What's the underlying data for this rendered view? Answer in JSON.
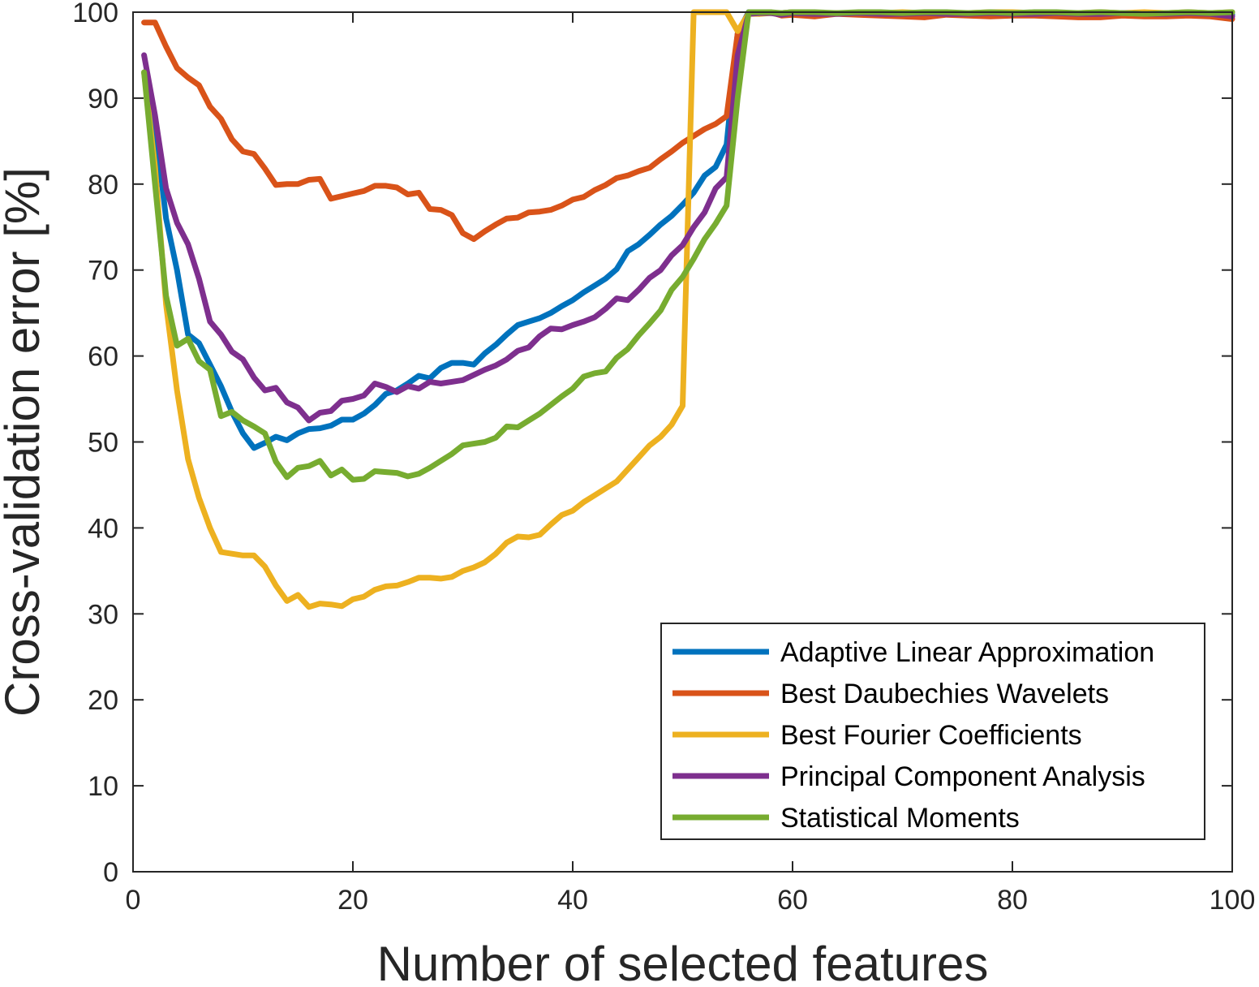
{
  "chart_data": {
    "type": "line",
    "title": "",
    "xlabel": "Number of selected features",
    "ylabel": "Cross-validation error [%]",
    "xlim": [
      0,
      100
    ],
    "ylim": [
      0,
      100
    ],
    "xticks": [
      "0",
      "20",
      "40",
      "60",
      "80",
      "100"
    ],
    "yticks": [
      "0",
      "10",
      "20",
      "30",
      "40",
      "50",
      "60",
      "70",
      "80",
      "90",
      "100"
    ],
    "grid": false,
    "legend_position": "bottom-right",
    "series": [
      {
        "name": "Adaptive Linear Approximation",
        "color": "#0072BD",
        "x": [
          1,
          2,
          3,
          4,
          5,
          6,
          7,
          8,
          9,
          10,
          11,
          12,
          13,
          14,
          15,
          16,
          17,
          18,
          19,
          20,
          21,
          22,
          23,
          24,
          25,
          26,
          27,
          28,
          29,
          30,
          31,
          32,
          33,
          34,
          35,
          36,
          37,
          38,
          39,
          40,
          41,
          42,
          43,
          44,
          45,
          46,
          47,
          48,
          49,
          50,
          51,
          52,
          53,
          54,
          55,
          56,
          57,
          58,
          59,
          60,
          62,
          64,
          66,
          68,
          70,
          72,
          74,
          76,
          78,
          80,
          82,
          84,
          86,
          88,
          90,
          92,
          94,
          96,
          98,
          100
        ],
        "y": [
          93,
          87,
          76,
          70,
          62.5,
          61.5,
          59,
          56.5,
          53.5,
          51,
          49.3,
          49.9,
          50.6,
          50.2,
          51,
          51.5,
          51.6,
          51.9,
          52.6,
          52.6,
          53.3,
          54.3,
          55.6,
          56,
          56.8,
          57.7,
          57.4,
          58.6,
          59.2,
          59.2,
          59,
          60.3,
          61.3,
          62.5,
          63.6,
          64,
          64.4,
          65,
          65.8,
          66.5,
          67.4,
          68.2,
          69,
          70.1,
          72.2,
          73,
          74.1,
          75.3,
          76.3,
          77.6,
          79,
          81,
          82,
          84.6,
          97.5,
          100,
          100,
          99.9,
          99.9,
          100,
          99.8,
          99.9,
          99.8,
          99.9,
          99.9,
          99.8,
          99.9,
          99.8,
          99.9,
          99.9,
          99.8,
          99.9,
          99.8,
          99.9,
          99.9,
          99.8,
          99.9,
          99.8,
          99.9,
          99.7
        ]
      },
      {
        "name": "Best Daubechies Wavelets",
        "color": "#D95319",
        "x": [
          1,
          2,
          3,
          4,
          5,
          6,
          7,
          8,
          9,
          10,
          11,
          12,
          13,
          14,
          15,
          16,
          17,
          18,
          19,
          20,
          21,
          22,
          23,
          24,
          25,
          26,
          27,
          28,
          29,
          30,
          31,
          32,
          33,
          34,
          35,
          36,
          37,
          38,
          39,
          40,
          41,
          42,
          43,
          44,
          45,
          46,
          47,
          48,
          49,
          50,
          51,
          52,
          53,
          54,
          55,
          56,
          57,
          58,
          59,
          60,
          62,
          64,
          66,
          68,
          70,
          72,
          74,
          76,
          78,
          80,
          82,
          84,
          86,
          88,
          90,
          92,
          94,
          96,
          98,
          100
        ],
        "y": [
          98.8,
          98.8,
          96,
          93.5,
          92.4,
          91.5,
          89,
          87.6,
          85.2,
          83.8,
          83.5,
          81.8,
          79.9,
          80,
          80,
          80.5,
          80.6,
          78.3,
          78.6,
          78.9,
          79.2,
          79.8,
          79.8,
          79.6,
          78.8,
          79,
          77.1,
          77,
          76.4,
          74.3,
          73.6,
          74.5,
          75.3,
          76,
          76.1,
          76.7,
          76.8,
          77,
          77.5,
          78.2,
          78.5,
          79.3,
          79.9,
          80.7,
          81,
          81.5,
          81.9,
          82.9,
          83.8,
          84.8,
          85.6,
          86.4,
          87,
          87.9,
          97.5,
          99.9,
          99.8,
          100,
          99.6,
          99.7,
          99.5,
          99.8,
          99.7,
          99.6,
          99.5,
          99.4,
          99.7,
          99.6,
          99.5,
          99.6,
          99.6,
          99.5,
          99.4,
          99.4,
          99.6,
          99.5,
          99.5,
          99.6,
          99.5,
          99.2
        ]
      },
      {
        "name": "Best Fourier Coefficients",
        "color": "#EDB120",
        "x": [
          1,
          2,
          3,
          4,
          5,
          6,
          7,
          8,
          9,
          10,
          11,
          12,
          13,
          14,
          15,
          16,
          17,
          18,
          19,
          20,
          21,
          22,
          23,
          24,
          25,
          26,
          27,
          28,
          29,
          30,
          31,
          32,
          33,
          34,
          35,
          36,
          37,
          38,
          39,
          40,
          41,
          42,
          43,
          44,
          45,
          46,
          47,
          48,
          49,
          50,
          51,
          52,
          53,
          54,
          55,
          56,
          57,
          58,
          59,
          60,
          62,
          64,
          66,
          68,
          70,
          72,
          74,
          76,
          78,
          80,
          82,
          84,
          86,
          88,
          90,
          92,
          94,
          96,
          98,
          100
        ],
        "y": [
          93,
          82,
          66,
          56,
          48,
          43.5,
          40,
          37.2,
          37,
          36.8,
          36.8,
          35.5,
          33.3,
          31.5,
          32.2,
          30.8,
          31.2,
          31.1,
          30.9,
          31.7,
          32,
          32.8,
          33.2,
          33.3,
          33.7,
          34.2,
          34.2,
          34.1,
          34.3,
          35,
          35.4,
          36,
          37,
          38.3,
          39,
          38.9,
          39.2,
          40.4,
          41.5,
          42,
          43,
          43.8,
          44.6,
          45.4,
          46.8,
          48.2,
          49.6,
          50.6,
          52,
          54.2,
          100,
          100,
          100,
          100,
          97.8,
          99.8,
          99.8,
          99.9,
          99.9,
          100,
          99.9,
          99.9,
          99.9,
          99.9,
          100,
          99.9,
          99.9,
          99.9,
          100,
          100,
          99.9,
          99.9,
          99.9,
          100,
          99.9,
          100,
          99.9,
          100,
          99.9,
          100
        ]
      },
      {
        "name": "Principal Component Analysis",
        "color": "#7E2F8E",
        "x": [
          1,
          2,
          3,
          4,
          5,
          6,
          7,
          8,
          9,
          10,
          11,
          12,
          13,
          14,
          15,
          16,
          17,
          18,
          19,
          20,
          21,
          22,
          23,
          24,
          25,
          26,
          27,
          28,
          29,
          30,
          31,
          32,
          33,
          34,
          35,
          36,
          37,
          38,
          39,
          40,
          41,
          42,
          43,
          44,
          45,
          46,
          47,
          48,
          49,
          50,
          51,
          52,
          53,
          54,
          55,
          56,
          57,
          58,
          59,
          60,
          62,
          64,
          66,
          68,
          70,
          72,
          74,
          76,
          78,
          80,
          82,
          84,
          86,
          88,
          90,
          92,
          94,
          96,
          98,
          100
        ],
        "y": [
          95,
          88,
          79.5,
          75.5,
          73,
          69,
          64,
          62.5,
          60.5,
          59.6,
          57.5,
          56,
          56.3,
          54.6,
          54,
          52.5,
          53.4,
          53.6,
          54.8,
          55,
          55.4,
          56.8,
          56.4,
          55.8,
          56.5,
          56.2,
          57,
          56.8,
          57,
          57.2,
          57.8,
          58.4,
          58.9,
          59.6,
          60.6,
          61,
          62.3,
          63.2,
          63.1,
          63.6,
          64,
          64.5,
          65.5,
          66.7,
          66.5,
          67.7,
          69.1,
          70,
          71.7,
          72.9,
          75,
          76.7,
          79.5,
          80.8,
          95,
          99.8,
          99.9,
          99.9,
          99.7,
          99.9,
          99.8,
          99.8,
          99.9,
          99.8,
          99.8,
          99.9,
          99.8,
          99.8,
          99.9,
          99.8,
          99.8,
          99.9,
          99.8,
          99.8,
          99.9,
          99.8,
          99.8,
          99.9,
          99.8,
          99.5
        ]
      },
      {
        "name": "Statistical Moments",
        "color": "#77AC30",
        "x": [
          1,
          2,
          3,
          4,
          5,
          6,
          7,
          8,
          9,
          10,
          11,
          12,
          13,
          14,
          15,
          16,
          17,
          18,
          19,
          20,
          21,
          22,
          23,
          24,
          25,
          26,
          27,
          28,
          29,
          30,
          31,
          32,
          33,
          34,
          35,
          36,
          37,
          38,
          39,
          40,
          41,
          42,
          43,
          44,
          45,
          46,
          47,
          48,
          49,
          50,
          51,
          52,
          53,
          54,
          55,
          56,
          57,
          58,
          59,
          60,
          62,
          64,
          66,
          68,
          70,
          72,
          74,
          76,
          78,
          80,
          82,
          84,
          86,
          88,
          90,
          92,
          94,
          96,
          98,
          100
        ],
        "y": [
          93,
          80,
          67,
          61.2,
          62,
          59.4,
          58.4,
          53,
          53.5,
          52.5,
          51.8,
          51,
          47.7,
          45.9,
          47,
          47.2,
          47.8,
          46.1,
          46.8,
          45.6,
          45.7,
          46.6,
          46.5,
          46.4,
          46,
          46.3,
          47,
          47.8,
          48.6,
          49.6,
          49.8,
          50,
          50.5,
          51.8,
          51.7,
          52.5,
          53.3,
          54.3,
          55.3,
          56.2,
          57.6,
          58,
          58.2,
          59.8,
          60.8,
          62.4,
          63.8,
          65.3,
          67.7,
          69.2,
          71.3,
          73.6,
          75.4,
          77.5,
          90,
          100,
          100,
          100,
          99.9,
          100,
          100,
          99.9,
          100,
          100,
          99.9,
          100,
          100,
          99.9,
          100,
          99.9,
          100,
          100,
          99.9,
          100,
          99.9,
          99.8,
          99.9,
          100,
          99.9,
          100
        ]
      }
    ]
  }
}
